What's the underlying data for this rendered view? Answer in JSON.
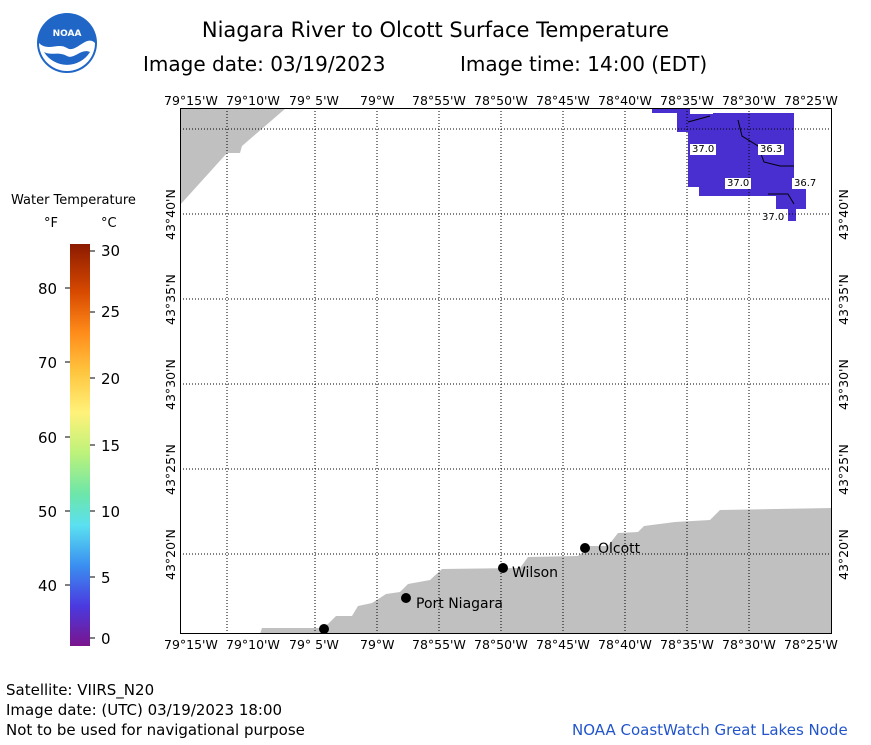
{
  "header": {
    "title": "Niagara River to Olcott Surface Temperature",
    "image_date": "Image date: 03/19/2023",
    "image_time": "Image time: 14:00 (EDT)"
  },
  "logo": {
    "text": "NOAA"
  },
  "map": {
    "lon_labels": [
      "79°15'W",
      "79°10'W",
      "79° 5'W",
      "79°W",
      "78°55'W",
      "78°50'W",
      "78°45'W",
      "78°40'W",
      "78°35'W",
      "78°30'W",
      "78°25'W"
    ],
    "lat_labels": [
      "43°40'N",
      "43°35'N",
      "43°30'N",
      "43°25'N",
      "43°20'N"
    ],
    "places": [
      "Olcott",
      "Wilson",
      "Port Niagara"
    ],
    "contour_labels": [
      "37.0",
      "36.3",
      "37.0",
      "36.7",
      "37.0"
    ],
    "colors": {
      "land": "#c0c0c0",
      "water_temp": "#4a2fd0",
      "grid": "#000000"
    }
  },
  "legend": {
    "title": "Water Temperature",
    "unit_f": "°F",
    "unit_c": "°C",
    "f_ticks": [
      "80",
      "70",
      "60",
      "50",
      "40"
    ],
    "c_ticks": [
      "30",
      "25",
      "20",
      "15",
      "10",
      "5",
      "0"
    ]
  },
  "footer": {
    "satellite": "Satellite: VIIRS_N20",
    "utc_date": "Image date: (UTC) 03/19/2023  18:00",
    "disclaimer": "Not to be used for navigational purpose",
    "credit": "NOAA CoastWatch Great Lakes Node"
  }
}
